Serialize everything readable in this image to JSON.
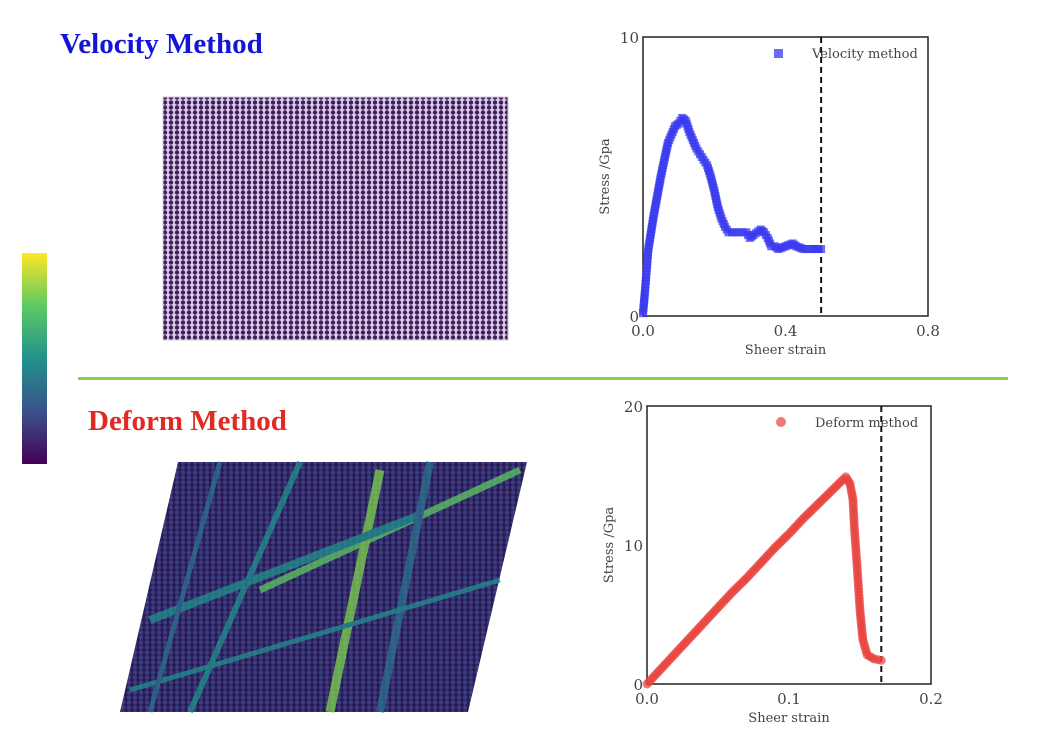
{
  "slide": {
    "top_title": "Velocity Method",
    "bottom_title": "Deform Method"
  },
  "colors": {
    "velocity": "#3a3af0",
    "deform": "#e8423c",
    "divider": "#8ccf4a",
    "colorbar": "viridis"
  },
  "chart_data": [
    {
      "type": "scatter",
      "marker": "square",
      "legend": "Velocity method",
      "legend_position": "top-right",
      "xlabel": "Sheer strain",
      "ylabel": "Stress /Gpa",
      "xlim": [
        0,
        0.8
      ],
      "ylim": [
        0,
        10
      ],
      "xticks": [
        "0.0",
        "0.4",
        "0.8"
      ],
      "yticks": [
        "0",
        "10"
      ],
      "vline": 0.5,
      "x": [
        0,
        0.005,
        0.01,
        0.015,
        0.02,
        0.03,
        0.04,
        0.05,
        0.06,
        0.07,
        0.08,
        0.09,
        0.1,
        0.11,
        0.12,
        0.13,
        0.14,
        0.15,
        0.16,
        0.17,
        0.18,
        0.19,
        0.2,
        0.21,
        0.22,
        0.23,
        0.24,
        0.25,
        0.27,
        0.29,
        0.3,
        0.31,
        0.33,
        0.34,
        0.35,
        0.36,
        0.37,
        0.38,
        0.4,
        0.42,
        0.43,
        0.45,
        0.47,
        0.5
      ],
      "y": [
        0.1,
        0.8,
        1.6,
        2.4,
        2.8,
        3.6,
        4.3,
        5.0,
        5.6,
        6.2,
        6.5,
        6.8,
        6.9,
        7.1,
        7.0,
        6.6,
        6.3,
        6.0,
        5.8,
        5.6,
        5.4,
        5.0,
        4.5,
        3.9,
        3.5,
        3.2,
        3.0,
        3.0,
        3.0,
        3.0,
        2.8,
        2.9,
        3.1,
        3.0,
        2.8,
        2.5,
        2.5,
        2.4,
        2.5,
        2.6,
        2.5,
        2.4,
        2.4,
        2.4
      ]
    },
    {
      "type": "scatter",
      "marker": "circle",
      "legend": "Deform method",
      "legend_position": "top-right",
      "xlabel": "Sheer strain",
      "ylabel": "Stress /Gpa",
      "xlim": [
        0,
        0.2
      ],
      "ylim": [
        0,
        20
      ],
      "xticks": [
        "0.0",
        "0.1",
        "0.2"
      ],
      "yticks": [
        "0",
        "10",
        "20"
      ],
      "vline": 0.165,
      "x": [
        0,
        0.01,
        0.02,
        0.03,
        0.04,
        0.05,
        0.06,
        0.07,
        0.08,
        0.09,
        0.1,
        0.11,
        0.12,
        0.13,
        0.14,
        0.143,
        0.145,
        0.146,
        0.148,
        0.15,
        0.152,
        0.155,
        0.16,
        0.165
      ],
      "y": [
        0,
        1.1,
        2.2,
        3.3,
        4.4,
        5.5,
        6.6,
        7.6,
        8.7,
        9.8,
        10.8,
        11.9,
        12.9,
        13.9,
        14.9,
        14.4,
        13.3,
        11.3,
        8.4,
        5.3,
        3.2,
        2.1,
        1.8,
        1.7
      ]
    }
  ]
}
